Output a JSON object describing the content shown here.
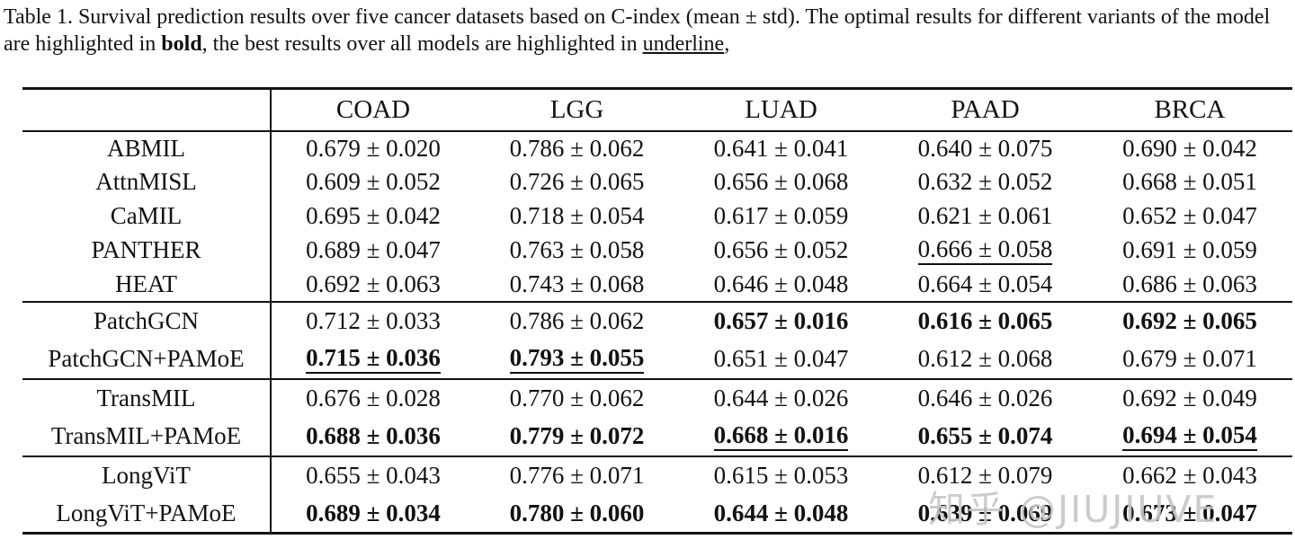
{
  "caption": {
    "prefix": "Table 1. Survival prediction results over five cancer datasets based on C-index (mean ± std). The optimal results for different variants of the model are highlighted in ",
    "bold_word": "bold",
    "middle": ", the best results over all models are highlighted in ",
    "underline_word": "underline",
    "suffix": ","
  },
  "table": {
    "columns": [
      "COAD",
      "LGG",
      "LUAD",
      "PAAD",
      "BRCA"
    ],
    "groups": [
      {
        "rows": [
          {
            "model": "ABMIL",
            "cells": [
              {
                "text": "0.679 ± 0.020",
                "bold": false,
                "underline": false
              },
              {
                "text": "0.786 ± 0.062",
                "bold": false,
                "underline": false
              },
              {
                "text": "0.641 ± 0.041",
                "bold": false,
                "underline": false
              },
              {
                "text": "0.640 ± 0.075",
                "bold": false,
                "underline": false
              },
              {
                "text": "0.690 ± 0.042",
                "bold": false,
                "underline": false
              }
            ]
          },
          {
            "model": "AttnMISL",
            "cells": [
              {
                "text": "0.609 ± 0.052",
                "bold": false,
                "underline": false
              },
              {
                "text": "0.726 ± 0.065",
                "bold": false,
                "underline": false
              },
              {
                "text": "0.656 ± 0.068",
                "bold": false,
                "underline": false
              },
              {
                "text": "0.632 ± 0.052",
                "bold": false,
                "underline": false
              },
              {
                "text": "0.668 ± 0.051",
                "bold": false,
                "underline": false
              }
            ]
          },
          {
            "model": "CaMIL",
            "cells": [
              {
                "text": "0.695 ± 0.042",
                "bold": false,
                "underline": false
              },
              {
                "text": "0.718 ± 0.054",
                "bold": false,
                "underline": false
              },
              {
                "text": "0.617 ± 0.059",
                "bold": false,
                "underline": false
              },
              {
                "text": "0.621 ± 0.061",
                "bold": false,
                "underline": false
              },
              {
                "text": "0.652 ± 0.047",
                "bold": false,
                "underline": false
              }
            ]
          },
          {
            "model": "PANTHER",
            "cells": [
              {
                "text": "0.689 ± 0.047",
                "bold": false,
                "underline": false
              },
              {
                "text": "0.763 ± 0.058",
                "bold": false,
                "underline": false
              },
              {
                "text": "0.656 ± 0.052",
                "bold": false,
                "underline": false
              },
              {
                "text": "0.666 ± 0.058",
                "bold": false,
                "underline": true
              },
              {
                "text": "0.691 ± 0.059",
                "bold": false,
                "underline": false
              }
            ]
          },
          {
            "model": "HEAT",
            "cells": [
              {
                "text": "0.692 ± 0.063",
                "bold": false,
                "underline": false
              },
              {
                "text": "0.743 ± 0.068",
                "bold": false,
                "underline": false
              },
              {
                "text": "0.646 ± 0.048",
                "bold": false,
                "underline": false
              },
              {
                "text": "0.664 ± 0.054",
                "bold": false,
                "underline": false
              },
              {
                "text": "0.686 ± 0.063",
                "bold": false,
                "underline": false
              }
            ]
          }
        ]
      },
      {
        "rows": [
          {
            "model": "PatchGCN",
            "cells": [
              {
                "text": "0.712 ± 0.033",
                "bold": false,
                "underline": false
              },
              {
                "text": "0.786 ± 0.062",
                "bold": false,
                "underline": false
              },
              {
                "text": "0.657 ± 0.016",
                "bold": true,
                "underline": false
              },
              {
                "text": "0.616 ± 0.065",
                "bold": true,
                "underline": false
              },
              {
                "text": "0.692 ± 0.065",
                "bold": true,
                "underline": false
              }
            ]
          },
          {
            "model": "PatchGCN+PAMoE",
            "cells": [
              {
                "text": "0.715 ± 0.036",
                "bold": true,
                "underline": true
              },
              {
                "text": "0.793 ± 0.055",
                "bold": true,
                "underline": true
              },
              {
                "text": "0.651 ± 0.047",
                "bold": false,
                "underline": false
              },
              {
                "text": "0.612 ± 0.068",
                "bold": false,
                "underline": false
              },
              {
                "text": "0.679 ± 0.071",
                "bold": false,
                "underline": false
              }
            ]
          }
        ]
      },
      {
        "rows": [
          {
            "model": "TransMIL",
            "cells": [
              {
                "text": "0.676 ± 0.028",
                "bold": false,
                "underline": false
              },
              {
                "text": "0.770 ± 0.062",
                "bold": false,
                "underline": false
              },
              {
                "text": "0.644 ± 0.026",
                "bold": false,
                "underline": false
              },
              {
                "text": "0.646 ± 0.026",
                "bold": false,
                "underline": false
              },
              {
                "text": "0.692 ± 0.049",
                "bold": false,
                "underline": false
              }
            ]
          },
          {
            "model": "TransMIL+PAMoE",
            "cells": [
              {
                "text": "0.688 ± 0.036",
                "bold": true,
                "underline": false
              },
              {
                "text": "0.779 ± 0.072",
                "bold": true,
                "underline": false
              },
              {
                "text": "0.668 ± 0.016",
                "bold": true,
                "underline": true
              },
              {
                "text": "0.655 ± 0.074",
                "bold": true,
                "underline": false
              },
              {
                "text": "0.694 ± 0.054",
                "bold": true,
                "underline": true
              }
            ]
          }
        ]
      },
      {
        "rows": [
          {
            "model": "LongViT",
            "cells": [
              {
                "text": "0.655 ± 0.043",
                "bold": false,
                "underline": false
              },
              {
                "text": "0.776 ± 0.071",
                "bold": false,
                "underline": false
              },
              {
                "text": "0.615 ± 0.053",
                "bold": false,
                "underline": false
              },
              {
                "text": "0.612 ± 0.079",
                "bold": false,
                "underline": false
              },
              {
                "text": "0.662 ± 0.043",
                "bold": false,
                "underline": false
              }
            ]
          },
          {
            "model": "LongViT+PAMoE",
            "cells": [
              {
                "text": "0.689 ± 0.034",
                "bold": true,
                "underline": false
              },
              {
                "text": "0.780 ± 0.060",
                "bold": true,
                "underline": false
              },
              {
                "text": "0.644 ± 0.048",
                "bold": true,
                "underline": false
              },
              {
                "text": "0.639 ± 0.069",
                "bold": true,
                "underline": false
              },
              {
                "text": "0.673 ± 0.047",
                "bold": true,
                "underline": false
              }
            ]
          }
        ]
      }
    ]
  },
  "watermark": "知乎 @JIUJIUVE"
}
